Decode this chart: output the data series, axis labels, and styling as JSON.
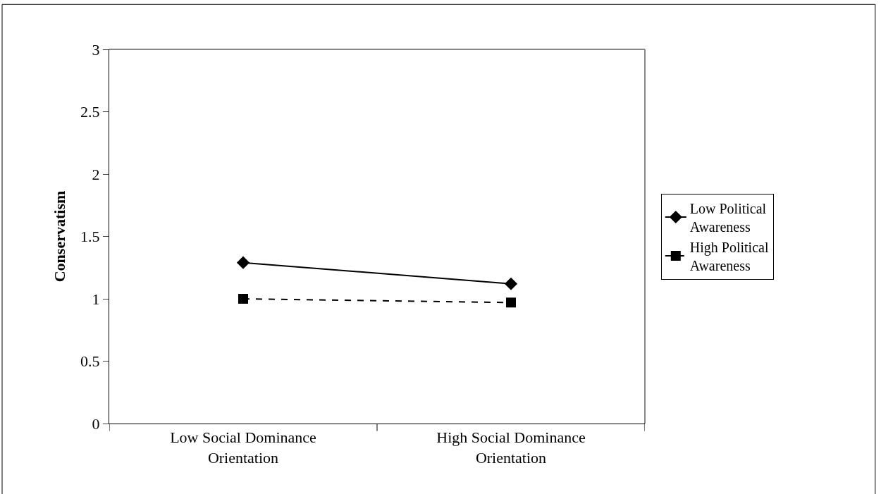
{
  "chart_data": {
    "type": "line",
    "ylabel": "Conservatism",
    "categories": [
      "Low Social Dominance Orientation",
      "High Social Dominance Orientation"
    ],
    "series": [
      {
        "name": "Low Political Awareness",
        "color": "#000000",
        "values": [
          1.29,
          1.12
        ],
        "marker": "diamond",
        "line_style": "solid"
      },
      {
        "name": "High Political Awareness",
        "color": "#000000",
        "values": [
          1.0,
          0.97
        ],
        "marker": "square",
        "line_style": "dashed"
      }
    ],
    "ylim": [
      0,
      3
    ],
    "yticks": [
      0,
      0.5,
      1,
      1.5,
      2,
      2.5,
      3
    ],
    "legend": "right"
  }
}
